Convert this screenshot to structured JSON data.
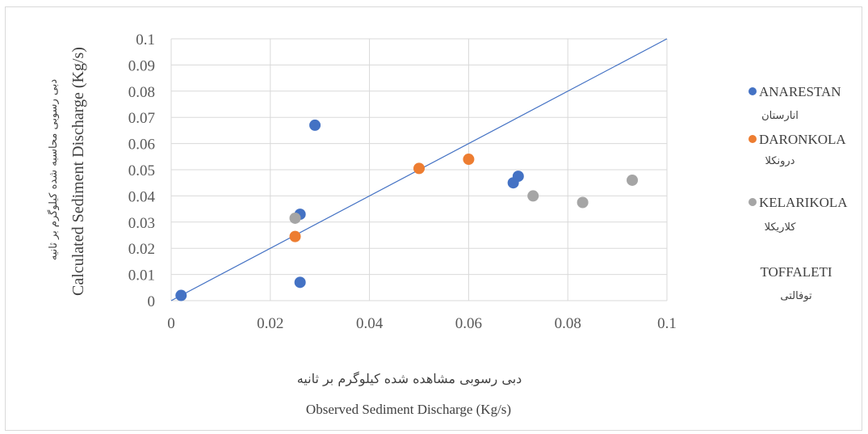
{
  "chart_data": {
    "type": "scatter",
    "title": "",
    "xlabel_fa": "دبی رسوبی مشاهده شده کیلوگرم بر ثانیه",
    "xlabel": "Observed Sediment Discharge (Kg/s)",
    "ylabel_fa": "دبی رسوبی محاسبه شده کیلوگرم بر ثانیه",
    "ylabel": "Calculated Sediment  Discharge (Kg/s)",
    "xlim": [
      0,
      0.1
    ],
    "ylim": [
      0,
      0.1
    ],
    "x_ticks": [
      "0",
      "0.02",
      "0.04",
      "0.06",
      "0.08",
      "0.1"
    ],
    "y_ticks": [
      "0",
      "0.01",
      "0.02",
      "0.03",
      "0.04",
      "0.05",
      "0.06",
      "0.07",
      "0.08",
      "0.09",
      "0.1"
    ],
    "grid": "vertical and horizontal",
    "legend_position": "right",
    "reference_line": {
      "from": [
        0,
        0
      ],
      "to": [
        0.1,
        0.1
      ],
      "color": "#4472c4"
    },
    "series": [
      {
        "name": "ANARESTAN",
        "name_fa": "انارستان",
        "color": "#4472c4",
        "points": [
          [
            0.002,
            0.002
          ],
          [
            0.026,
            0.007
          ],
          [
            0.026,
            0.033
          ],
          [
            0.029,
            0.067
          ],
          [
            0.069,
            0.045
          ],
          [
            0.07,
            0.0475
          ]
        ]
      },
      {
        "name": "DARONKOLA",
        "name_fa": "درونکلا",
        "color": "#ed7d31",
        "points": [
          [
            0.025,
            0.0245
          ],
          [
            0.05,
            0.0505
          ],
          [
            0.06,
            0.054
          ]
        ]
      },
      {
        "name": "KELARIKOLA",
        "name_fa": "کلاریکلا",
        "color": "#a5a5a5",
        "points": [
          [
            0.025,
            0.0315
          ],
          [
            0.073,
            0.04
          ],
          [
            0.083,
            0.0375
          ],
          [
            0.093,
            0.046
          ]
        ]
      },
      {
        "name": "TOFFALETI",
        "name_fa": "توفالتی",
        "color": "#4472c4",
        "points": []
      }
    ]
  }
}
